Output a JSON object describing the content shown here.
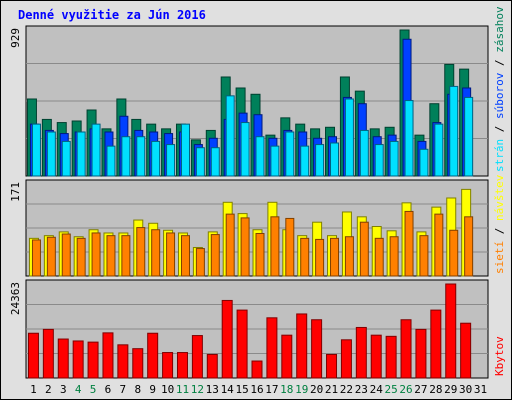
{
  "chart_data": {
    "type": "bar",
    "title": "Denné využitie za Jún 2016",
    "categories": [
      "1",
      "2",
      "3",
      "4",
      "5",
      "6",
      "7",
      "8",
      "9",
      "10",
      "11",
      "12",
      "13",
      "14",
      "15",
      "16",
      "17",
      "18",
      "19",
      "20",
      "21",
      "22",
      "23",
      "24",
      "25",
      "26",
      "27",
      "28",
      "29",
      "30",
      "31"
    ],
    "weekend_categories": [
      "4",
      "5",
      "11",
      "12",
      "18",
      "19",
      "25",
      "26"
    ],
    "colors": {
      "zasahov": "#00805a",
      "suborov": "#0040ff",
      "stran": "#00e0ff",
      "navstev": "#ffff00",
      "sieti": "#ff8000",
      "kbytov": "#ff0000",
      "plot_bg": "#c0c0c0",
      "frame_bg": "#e0e0e0",
      "weekend_label": "#008040",
      "title": "#0000ff"
    },
    "panels": [
      {
        "ymax": 929,
        "ymax_label": "929",
        "series": [
          {
            "name": "zásahov",
            "values": [
              490,
              360,
              340,
              350,
              420,
              300,
              490,
              360,
              330,
              300,
              330,
              230,
              290,
              630,
              560,
              520,
              260,
              370,
              330,
              300,
              310,
              630,
              540,
              300,
              310,
              929,
              260,
              460,
              710,
              680,
              0
            ]
          },
          {
            "name": "súborov",
            "values": [
              330,
              290,
              270,
              280,
              300,
              280,
              380,
              290,
              280,
              270,
              280,
              200,
              240,
              360,
              400,
              390,
              240,
              290,
              280,
              240,
              250,
              500,
              460,
              250,
              260,
              870,
              220,
              340,
              520,
              560,
              0
            ]
          },
          {
            "name": "strán",
            "values": [
              330,
              280,
              220,
              280,
              330,
              190,
              250,
              250,
              220,
              200,
              330,
              180,
              180,
              510,
              340,
              250,
              190,
              280,
              190,
              200,
              210,
              490,
              290,
              200,
              220,
              480,
              170,
              330,
              570,
              500,
              0
            ]
          }
        ]
      },
      {
        "ymax": 171,
        "ymax_label": "171",
        "series": [
          {
            "name": "návštev",
            "values": [
              70,
              75,
              82,
              73,
              86,
              80,
              80,
              104,
              98,
              85,
              80,
              53,
              82,
              137,
              116,
              86,
              137,
              86,
              75,
              100,
              75,
              119,
              110,
              92,
              84,
              136,
              82,
              128,
              145,
              161,
              0
            ]
          },
          {
            "name": "sietí",
            "values": [
              67,
              72,
              78,
              70,
              80,
              75,
              75,
              90,
              86,
              80,
              75,
              51,
              77,
              115,
              108,
              79,
              110,
              107,
              70,
              68,
              70,
              73,
              100,
              70,
              73,
              120,
              75,
              115,
              85,
              110,
              0
            ]
          }
        ]
      },
      {
        "ymax": 24363,
        "ymax_label": "24363",
        "series": [
          {
            "name": "kbytov",
            "values": [
              11600,
              12600,
              10100,
              9600,
              9300,
              11700,
              8600,
              7600,
              11600,
              6600,
              6600,
              11000,
              6100,
              20100,
              17600,
              4400,
              15600,
              11100,
              16600,
              15100,
              6100,
              9900,
              13100,
              11100,
              10800,
              15100,
              12600,
              17600,
              24363,
              14200,
              0
            ]
          }
        ]
      }
    ],
    "legend": {
      "panel1": {
        "a": "strán",
        "b": "súborov",
        "c": "zásahov"
      },
      "panel2": {
        "a": "sietí",
        "b": "návštev"
      },
      "panel3": {
        "a": "Kbytov"
      }
    },
    "separator": "/"
  }
}
